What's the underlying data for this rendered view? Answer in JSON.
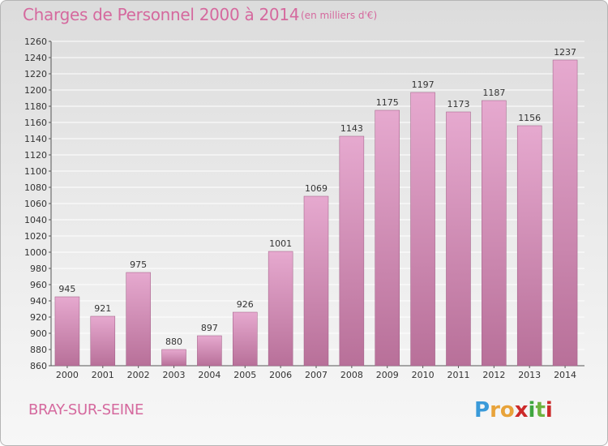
{
  "header": {
    "title": "Charges de Personnel 2000 à 2014",
    "subtitle": "(en milliers d'€)"
  },
  "footer": {
    "town": "BRAY-SUR-SEINE",
    "logo_letters": [
      "P",
      "r",
      "o",
      "x",
      "i",
      "t",
      "i"
    ],
    "logo_colors": [
      "#3a9ad9",
      "#e8a33a",
      "#e8a33a",
      "#cc2a2a",
      "#3fa63f",
      "#6db33f",
      "#cc2a2a"
    ]
  },
  "colors": {
    "bar_top": "#e6a9cf",
    "bar_bottom": "#b87099",
    "text": "#d5699e"
  },
  "chart_data": {
    "type": "bar",
    "title": "Charges de Personnel 2000 à 2014",
    "subtitle": "(en milliers d'€)",
    "xlabel": "",
    "ylabel": "",
    "categories": [
      "2000",
      "2001",
      "2002",
      "2003",
      "2004",
      "2005",
      "2006",
      "2007",
      "2008",
      "2009",
      "2010",
      "2011",
      "2012",
      "2013",
      "2014"
    ],
    "values": [
      945,
      921,
      975,
      880,
      897,
      926,
      1001,
      1069,
      1143,
      1175,
      1197,
      1173,
      1187,
      1156,
      1237
    ],
    "data_labels": [
      "945",
      "921",
      "975",
      "880",
      "897",
      "926",
      "1001",
      "1069",
      "1143",
      "1175",
      "1197",
      "1173",
      "1187",
      "1156",
      "1237"
    ],
    "ylim": [
      860,
      1260
    ],
    "yticks": [
      860,
      880,
      900,
      920,
      940,
      960,
      980,
      1000,
      1020,
      1040,
      1060,
      1080,
      1100,
      1120,
      1140,
      1160,
      1180,
      1200,
      1220,
      1240,
      1260
    ],
    "grid": true
  }
}
